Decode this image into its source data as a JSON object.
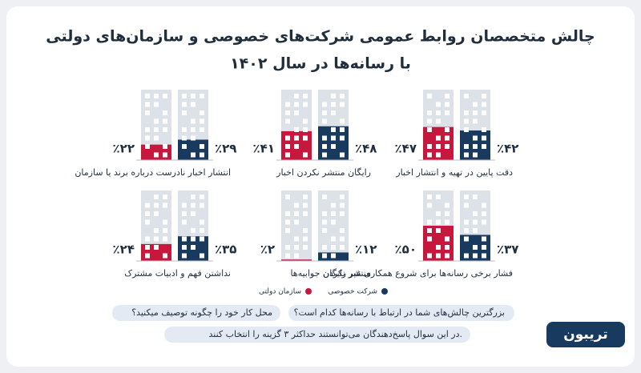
{
  "chart_data": {
    "type": "bar",
    "title": "چالش متخصصان روابط عمومی شرکت‌های خصوصی و سازمان‌های دولتی",
    "subtitle": "با رسانه‌ها در سال ۱۴۰۲",
    "categories": [
      "دقت پایین در تهیه و انتشار اخبار",
      "رایگان منتشر نکردن اخبار",
      "انتشار اخبار نادرست درباره برند یا سازمان",
      "فشار برخی رسانه‌ها برای شروع همکاری غیر رایگان",
      "منتشر نکردن جوابیه‌ها",
      "نداشتن فهم و ادبیات مشترک"
    ],
    "series": [
      {
        "name": "شرکت خصوصی",
        "color": "#173a5e",
        "values": [
          42,
          48,
          29,
          37,
          12,
          35
        ],
        "value_labels": [
          "٪۴۲",
          "٪۴۸",
          "٪۲۹",
          "٪۳۷",
          "٪۱۲",
          "٪۳۵"
        ]
      },
      {
        "name": "سازمان دولتی",
        "color": "#c8173d",
        "values": [
          47,
          41,
          22,
          50,
          2,
          24
        ],
        "value_labels": [
          "٪۴۷",
          "٪۴۱",
          "٪۲۲",
          "٪۵۰",
          "٪۲",
          "٪۲۴"
        ]
      }
    ],
    "ylim": [
      0,
      100
    ],
    "notes": [
      "بزرگترین چالش‌های شما در ارتباط با رسانه‌ها کدام است؟",
      "محل کار خود را چگونه توصیف میکنید؟",
      "در این سوال پاسخ‌دهندگان می‌توانستند حداکثر ۳ گزینه را انتخاب کنند."
    ]
  },
  "brand": "تریبون"
}
